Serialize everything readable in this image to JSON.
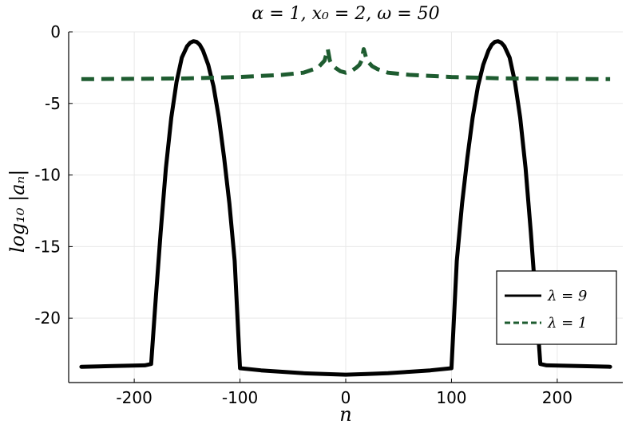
{
  "chart_data": {
    "type": "line",
    "title": "α = 1, x₀ = 2, ω = 50",
    "xlabel": "n",
    "ylabel": "log₁₀ |aₙ|",
    "xlim": [
      -262,
      262
    ],
    "ylim": [
      -24.5,
      0
    ],
    "xticks": [
      -200,
      -100,
      0,
      100,
      200
    ],
    "xtick_labels": [
      "-200",
      "-100",
      "0",
      "100",
      "200"
    ],
    "yticks": [
      0,
      -5,
      -10,
      -15,
      -20
    ],
    "ytick_labels": [
      "0",
      "-5",
      "-10",
      "-15",
      "-20"
    ],
    "grid": true,
    "legend_position": "bottom-right",
    "series": [
      {
        "name": "λ = 9",
        "color": "#000000",
        "style": "solid",
        "x": [
          -250,
          -220,
          -190,
          -184,
          -180,
          -175,
          -170,
          -165,
          -160,
          -155,
          -150,
          -147,
          -144,
          -141,
          -138,
          -135,
          -130,
          -125,
          -120,
          -115,
          -110,
          -105,
          -102,
          -100,
          -80,
          -60,
          -40,
          -20,
          0,
          20,
          40,
          60,
          80,
          100,
          102,
          105,
          110,
          115,
          120,
          125,
          130,
          135,
          138,
          141,
          144,
          147,
          150,
          155,
          160,
          165,
          170,
          175,
          180,
          184,
          190,
          220,
          250
        ],
        "y": [
          -23.4,
          -23.35,
          -23.3,
          -23.2,
          -19.0,
          -14.0,
          -9.5,
          -6.0,
          -3.5,
          -1.8,
          -1.0,
          -0.75,
          -0.65,
          -0.7,
          -0.9,
          -1.3,
          -2.3,
          -3.8,
          -6.0,
          -8.8,
          -12.0,
          -16.0,
          -20.5,
          -23.5,
          -23.65,
          -23.75,
          -23.85,
          -23.9,
          -23.95,
          -23.9,
          -23.85,
          -23.75,
          -23.65,
          -23.5,
          -20.5,
          -16.0,
          -12.0,
          -8.8,
          -6.0,
          -3.8,
          -2.3,
          -1.3,
          -0.9,
          -0.7,
          -0.65,
          -0.75,
          -1.0,
          -1.8,
          -3.5,
          -6.0,
          -9.5,
          -14.0,
          -19.0,
          -23.2,
          -23.3,
          -23.35,
          -23.4
        ]
      },
      {
        "name": "λ = 1",
        "color": "#1e5c30",
        "style": "dashed",
        "x": [
          -250,
          -200,
          -150,
          -100,
          -60,
          -40,
          -30,
          -25,
          -20,
          -17,
          -15,
          -13,
          -10,
          -5,
          0,
          5,
          10,
          13,
          15,
          17,
          20,
          25,
          30,
          40,
          60,
          100,
          150,
          200,
          250
        ],
        "y": [
          -3.3,
          -3.28,
          -3.25,
          -3.15,
          -3.0,
          -2.85,
          -2.6,
          -2.4,
          -2.0,
          -1.2,
          -2.0,
          -2.3,
          -2.5,
          -2.75,
          -2.85,
          -2.75,
          -2.5,
          -2.3,
          -2.0,
          -1.2,
          -2.0,
          -2.4,
          -2.6,
          -2.85,
          -3.0,
          -3.15,
          -3.25,
          -3.28,
          -3.3
        ]
      }
    ]
  }
}
